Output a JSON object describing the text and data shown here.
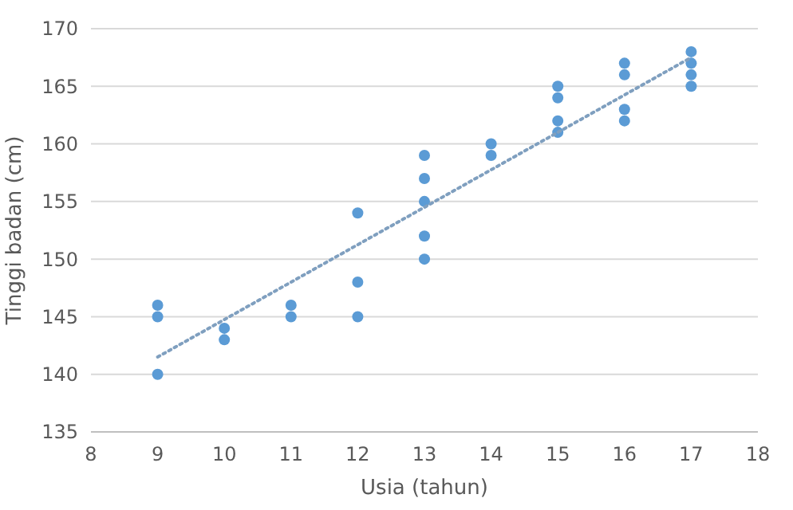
{
  "chart_data": {
    "type": "scatter",
    "xlabel": "Usia (tahun)",
    "ylabel": "Tinggi badan (cm)",
    "xlim": [
      8,
      18
    ],
    "xticks": [
      8,
      9,
      10,
      11,
      12,
      13,
      14,
      15,
      16,
      17,
      18
    ],
    "ylim": [
      135,
      170
    ],
    "yticks": [
      135,
      140,
      145,
      150,
      155,
      160,
      165,
      170
    ],
    "grid": "y",
    "marker": "circle",
    "series": [
      {
        "color": "#5b9bd5",
        "x": [
          9,
          9,
          9,
          10,
          10,
          11,
          11,
          12,
          12,
          12,
          13,
          13,
          13,
          13,
          13,
          14,
          14,
          15,
          15,
          15,
          15,
          16,
          16,
          16,
          16,
          17,
          17,
          17,
          17
        ],
        "values": [
          146,
          145,
          140,
          144,
          143,
          146,
          145,
          154,
          148,
          145,
          159,
          157,
          155,
          152,
          150,
          160,
          159,
          165,
          164,
          162,
          161,
          167,
          166,
          163,
          162,
          168,
          167,
          166,
          165
        ]
      },
      {
        "type": "line",
        "color": "#7f9fbf",
        "line_style": "dotted",
        "marker": "none",
        "x": [
          9,
          17
        ],
        "values": [
          141.5,
          167.5
        ]
      }
    ]
  }
}
